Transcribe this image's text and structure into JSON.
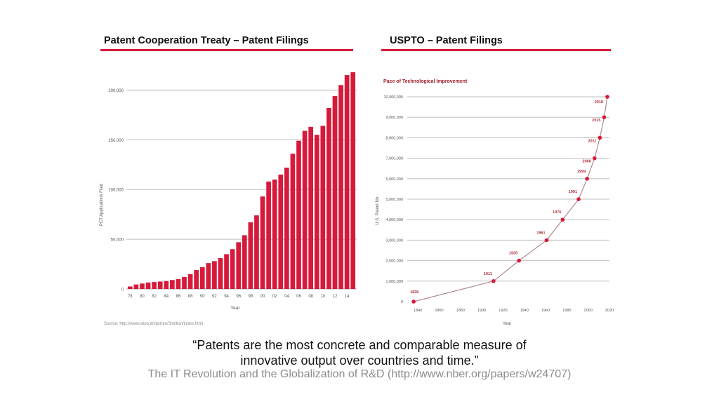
{
  "left_panel": {
    "title": "Patent Cooperation Treaty – Patent Filings",
    "source": "Source: http://www.wipo.int/pct/en/3million/index.html"
  },
  "right_panel": {
    "title": "USPTO – Patent Filings"
  },
  "quote": {
    "line1": "“Patents are the most concrete and comparable measure of",
    "line2": "innovative output over countries and time.”",
    "citation": "The IT Revolution and the Globalization of R&D (http://www.nber.org/papers/w24707)"
  },
  "colors": {
    "accent": "#d7193a",
    "line": "#b08890",
    "grid": "#bdbdbd"
  },
  "chart_data": [
    {
      "type": "bar",
      "title": "",
      "xlabel": "Year",
      "ylabel": "PCT Applications Filed",
      "ylim": [
        0,
        220000
      ],
      "yticks": [
        0,
        50000,
        100000,
        150000,
        200000
      ],
      "ytick_labels": [
        "0",
        "50,000",
        "100,000",
        "150,000",
        "200,000"
      ],
      "grid": true,
      "categories": [
        "78",
        "79",
        "80",
        "81",
        "82",
        "83",
        "84",
        "85",
        "86",
        "87",
        "88",
        "89",
        "90",
        "91",
        "92",
        "93",
        "94",
        "95",
        "96",
        "97",
        "98",
        "99",
        "00",
        "01",
        "02",
        "03",
        "04",
        "05",
        "06",
        "07",
        "08",
        "09",
        "10",
        "11",
        "12",
        "13",
        "14",
        "15"
      ],
      "xtick_labels": [
        "78",
        "80",
        "82",
        "84",
        "86",
        "88",
        "90",
        "92",
        "94",
        "96",
        "98",
        "00",
        "02",
        "04",
        "06",
        "08",
        "10",
        "12",
        "14"
      ],
      "values": [
        2500,
        4500,
        5500,
        6500,
        7000,
        7500,
        8000,
        9000,
        10000,
        12000,
        15000,
        19000,
        22000,
        26000,
        28000,
        31000,
        35000,
        40000,
        47000,
        54000,
        67000,
        74000,
        93000,
        108000,
        110000,
        115000,
        122000,
        136000,
        149000,
        159000,
        163000,
        155000,
        164000,
        182000,
        194000,
        205000,
        215000,
        218000
      ]
    },
    {
      "type": "line",
      "title": "Pace of Technological Improvement",
      "xlabel": "Year",
      "ylabel": "U.S. Patent No.",
      "xlim": [
        1830,
        2020
      ],
      "ylim": [
        0,
        10000000
      ],
      "xticks": [
        1840,
        1860,
        1880,
        1900,
        1920,
        1940,
        1960,
        1980,
        2000,
        2020
      ],
      "yticks": [
        0,
        1000000,
        2000000,
        3000000,
        4000000,
        5000000,
        6000000,
        7000000,
        8000000,
        9000000,
        10000000
      ],
      "ytick_labels": [
        "0",
        "1,000,000",
        "2,000,000",
        "3,000,000",
        "4,000,000",
        "5,000,000",
        "6,000,000",
        "7,000,000",
        "8,000,000",
        "9,000,000",
        "10,000,000"
      ],
      "grid": true,
      "points": [
        {
          "x": 1836,
          "y": 0,
          "label": "1836"
        },
        {
          "x": 1911,
          "y": 1000000,
          "label": "1911"
        },
        {
          "x": 1935,
          "y": 2000000,
          "label": "1935"
        },
        {
          "x": 1961,
          "y": 3000000,
          "label": "1961"
        },
        {
          "x": 1976,
          "y": 4000000,
          "label": "1976"
        },
        {
          "x": 1991,
          "y": 5000000,
          "label": "1991"
        },
        {
          "x": 1999,
          "y": 6000000,
          "label": "1999"
        },
        {
          "x": 2006,
          "y": 7000000,
          "label": "2006"
        },
        {
          "x": 2011,
          "y": 8000000,
          "label": "2011"
        },
        {
          "x": 2015,
          "y": 9000000,
          "label": "2015"
        },
        {
          "x": 2018,
          "y": 10000000,
          "label": "2018"
        }
      ]
    }
  ]
}
